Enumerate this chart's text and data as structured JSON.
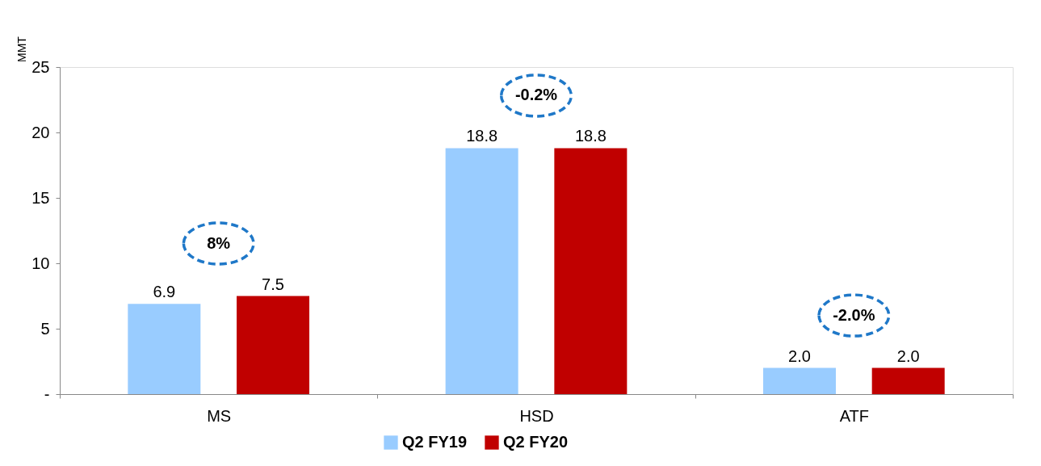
{
  "chart_data": {
    "type": "bar",
    "ylabel": "MMT",
    "categories": [
      "MS",
      "HSD",
      "ATF"
    ],
    "series": [
      {
        "name": "Q2 FY19",
        "color": "#99ccff",
        "values": [
          6.9,
          18.8,
          2.0
        ],
        "value_labels": [
          "6.9",
          "18.8",
          "2.0"
        ]
      },
      {
        "name": "Q2 FY20",
        "color": "#c00000",
        "values": [
          7.5,
          18.8,
          2.0
        ],
        "value_labels": [
          "7.5",
          "18.8",
          "2.0"
        ]
      }
    ],
    "ylim": [
      0,
      25
    ],
    "yticks": [
      {
        "value": 0,
        "label": "-"
      },
      5,
      10,
      15,
      20,
      25
    ],
    "annotations": [
      "8%",
      "-0.2%",
      "-2.0%"
    ],
    "legend": "bottom",
    "grid": false
  }
}
